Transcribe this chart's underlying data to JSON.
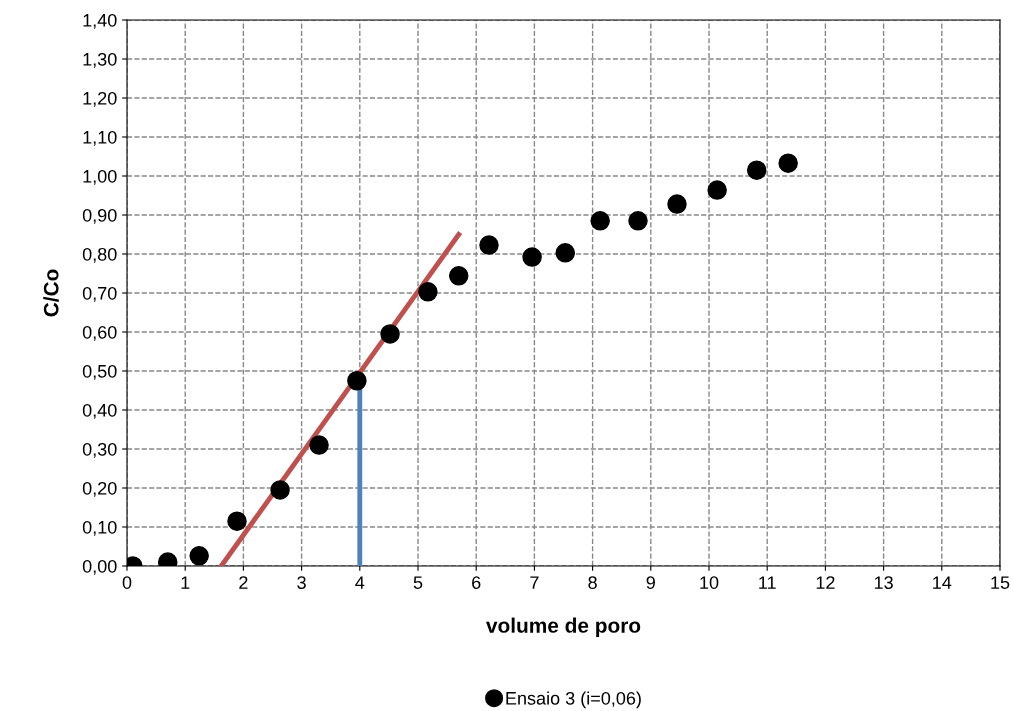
{
  "chart_data": {
    "type": "scatter",
    "xlabel": "volume de poro",
    "ylabel": "C/Co",
    "xlim": [
      0,
      15
    ],
    "ylim": [
      0,
      1.4
    ],
    "xticks": [
      0,
      1,
      2,
      3,
      4,
      5,
      6,
      7,
      8,
      9,
      10,
      11,
      12,
      13,
      14,
      15
    ],
    "yticks": [
      {
        "value": 0,
        "label": "0,00"
      },
      {
        "value": 0.1,
        "label": "0,10"
      },
      {
        "value": 0.2,
        "label": "0,20"
      },
      {
        "value": 0.3,
        "label": "0,30"
      },
      {
        "value": 0.4,
        "label": "0,40"
      },
      {
        "value": 0.5,
        "label": "0,50"
      },
      {
        "value": 0.6,
        "label": "0,60"
      },
      {
        "value": 0.7,
        "label": "0,70"
      },
      {
        "value": 0.8,
        "label": "0,80"
      },
      {
        "value": 0.9,
        "label": "0,90"
      },
      {
        "value": 1.0,
        "label": "1,00"
      },
      {
        "value": 1.1,
        "label": "1,10"
      },
      {
        "value": 1.2,
        "label": "1,20"
      },
      {
        "value": 1.3,
        "label": "1,30"
      },
      {
        "value": 1.4,
        "label": "1,40"
      }
    ],
    "grid": true,
    "legend": "bottom",
    "marker": "circle",
    "series": [
      {
        "type": "line",
        "color": "#c0504d",
        "x": [
          1.62,
          5.7
        ],
        "values": [
          0,
          0.85
        ],
        "line_style": "solid",
        "marker": "none"
      },
      {
        "type": "line",
        "color": "#4f81bd",
        "x": [
          4,
          4
        ],
        "values": [
          0,
          0.48
        ],
        "line_style": "solid",
        "marker": "none"
      },
      {
        "name": "Ensaio 3 (i=0,06)",
        "color": "#000000",
        "x": [
          0.1,
          0.7,
          1.24,
          1.89,
          2.63,
          3.3,
          3.95,
          4.52,
          5.17,
          5.7,
          6.22,
          6.96,
          7.53,
          8.13,
          8.78,
          9.45,
          10.14,
          10.82,
          11.36
        ],
        "values": [
          0,
          0.01,
          0.026,
          0.115,
          0.195,
          0.31,
          0.475,
          0.595,
          0.703,
          0.744,
          0.823,
          0.792,
          0.803,
          0.885,
          0.885,
          0.928,
          0.964,
          1.015,
          1.033
        ]
      }
    ]
  }
}
